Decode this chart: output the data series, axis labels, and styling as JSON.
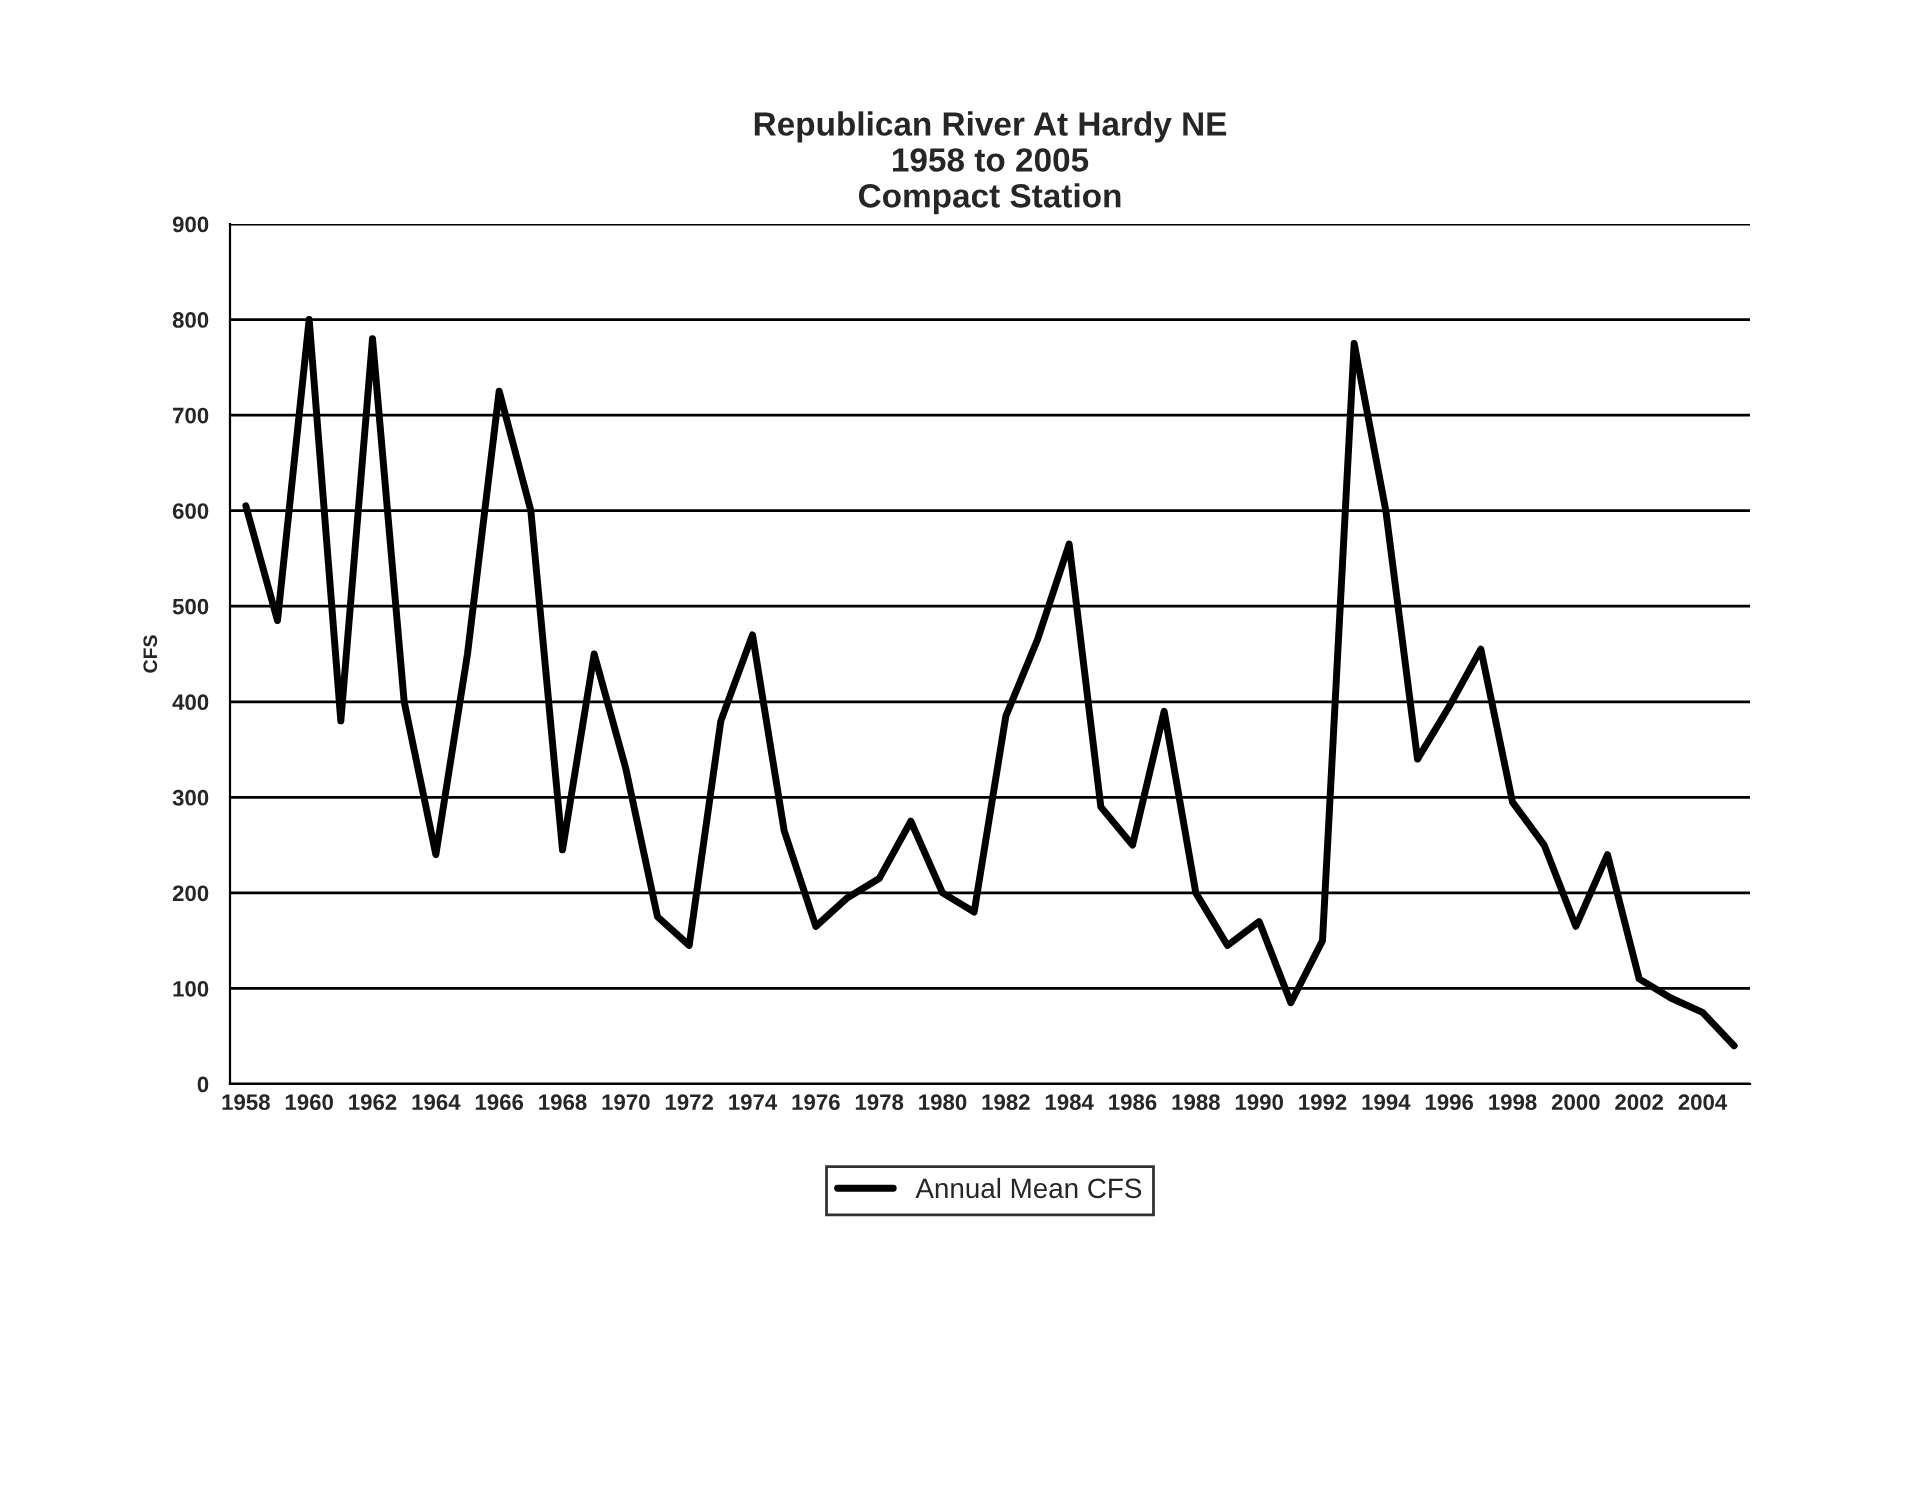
{
  "chart_data": {
    "type": "line",
    "title": "Republican River At Hardy NE\n1958 to 2005\nCompact Station",
    "ylabel": "CFS",
    "categories": [
      "1958",
      null,
      "1960",
      null,
      "1962",
      null,
      "1964",
      null,
      "1966",
      null,
      "1968",
      null,
      "1970",
      null,
      "1972",
      null,
      "1974",
      null,
      "1976",
      null,
      "1978",
      null,
      "1980",
      null,
      "1982",
      null,
      "1984",
      null,
      "1986",
      null,
      "1988",
      null,
      "1990",
      null,
      "1992",
      null,
      "1994",
      null,
      "1996",
      null,
      "1998",
      null,
      "2000",
      null,
      "2002",
      null,
      "2004",
      null
    ],
    "series": [
      {
        "name": "Annual Mean CFS",
        "color": "#000000",
        "values": [
          605,
          485,
          800,
          380,
          780,
          400,
          240,
          450,
          725,
          600,
          245,
          450,
          330,
          175,
          145,
          380,
          470,
          265,
          165,
          195,
          215,
          275,
          200,
          180,
          385,
          465,
          565,
          290,
          250,
          390,
          200,
          145,
          170,
          85,
          150,
          775,
          600,
          340,
          395,
          455,
          295,
          250,
          165,
          240,
          110,
          90,
          75,
          40
        ]
      }
    ],
    "ylim": [
      0,
      900
    ],
    "yticks": [
      0,
      100,
      200,
      300,
      400,
      500,
      600,
      700,
      800,
      900
    ],
    "grid": "y",
    "legend": "bottom",
    "marker": "none",
    "line_style": "solid"
  }
}
